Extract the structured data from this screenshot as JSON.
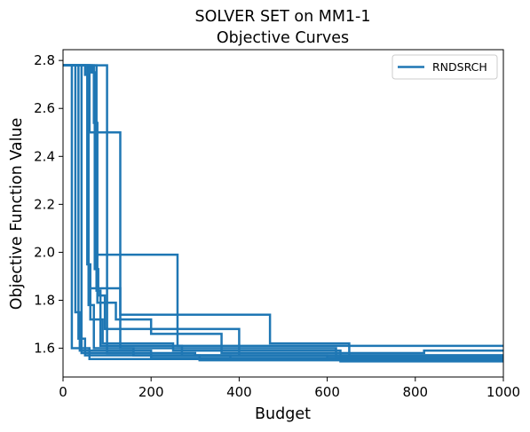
{
  "chart_data": {
    "type": "line",
    "title": "SOLVER SET on MM1-1",
    "subtitle": "Objective Curves",
    "xlabel": "Budget",
    "ylabel": "Objective Function Value",
    "xlim": [
      0,
      1000
    ],
    "ylim": [
      1.48,
      2.845
    ],
    "xticks": [
      0,
      200,
      400,
      600,
      800,
      1000
    ],
    "xtick_labels": [
      "0",
      "200",
      "400",
      "600",
      "800",
      "1000"
    ],
    "yticks": [
      1.6,
      1.8,
      2.0,
      2.2,
      2.4,
      2.6,
      2.8
    ],
    "ytick_labels": [
      "1.6",
      "1.8",
      "2.0",
      "2.2",
      "2.4",
      "2.6",
      "2.8"
    ],
    "grid": false,
    "legend_position": "top-right",
    "line_style": "step-post",
    "colors": {
      "series": "#1f77b4",
      "axes": "#000000",
      "background": "#ffffff"
    },
    "series": [
      {
        "name": "RNDSRCH",
        "x": [
          0,
          20,
          20,
          60,
          60,
          1000
        ],
        "y": [
          2.78,
          2.78,
          1.6,
          1.6,
          1.555,
          1.555
        ]
      },
      {
        "name": "",
        "x": [
          0,
          28,
          28,
          38,
          38,
          200,
          200,
          1000
        ],
        "y": [
          2.78,
          2.78,
          1.75,
          1.75,
          1.59,
          1.59,
          1.56,
          1.56
        ]
      },
      {
        "name": "",
        "x": [
          0,
          35,
          35,
          50,
          50,
          1000
        ],
        "y": [
          2.78,
          2.78,
          1.64,
          1.64,
          1.57,
          1.57
        ]
      },
      {
        "name": "",
        "x": [
          0,
          42,
          42,
          160,
          160,
          380,
          380,
          1000
        ],
        "y": [
          2.78,
          2.78,
          1.58,
          1.58,
          1.57,
          1.57,
          1.555,
          1.555
        ]
      },
      {
        "name": "",
        "x": [
          0,
          50,
          50,
          58,
          58,
          70,
          70,
          620,
          620,
          1000
        ],
        "y": [
          2.78,
          2.78,
          2.74,
          2.74,
          1.78,
          1.78,
          1.6,
          1.6,
          1.57,
          1.57
        ]
      },
      {
        "name": "",
        "x": [
          0,
          55,
          55,
          62,
          62,
          90,
          90,
          250,
          250,
          630,
          630,
          1000
        ],
        "y": [
          2.78,
          2.78,
          1.95,
          1.95,
          1.72,
          1.72,
          1.62,
          1.62,
          1.59,
          1.59,
          1.545,
          1.545
        ]
      },
      {
        "name": "",
        "x": [
          0,
          58,
          58,
          130,
          130,
          470,
          470,
          650,
          650,
          1000
        ],
        "y": [
          2.78,
          2.78,
          1.85,
          1.85,
          1.74,
          1.74,
          1.62,
          1.62,
          1.57,
          1.57
        ]
      },
      {
        "name": "",
        "x": [
          0,
          62,
          62,
          72,
          72,
          80,
          80,
          95,
          95,
          400,
          400,
          1000
        ],
        "y": [
          2.78,
          2.78,
          2.75,
          2.75,
          1.93,
          1.93,
          1.82,
          1.82,
          1.68,
          1.68,
          1.57,
          1.57
        ]
      },
      {
        "name": "",
        "x": [
          0,
          66,
          66,
          74,
          74,
          260,
          260,
          1000
        ],
        "y": [
          2.78,
          2.78,
          2.75,
          2.75,
          1.99,
          1.99,
          1.61,
          1.61
        ]
      },
      {
        "name": "",
        "x": [
          0,
          70,
          70,
          78,
          78,
          120,
          120,
          200,
          200,
          360,
          360,
          820,
          820,
          1000
        ],
        "y": [
          2.78,
          2.78,
          2.54,
          2.54,
          1.79,
          1.79,
          1.72,
          1.72,
          1.66,
          1.66,
          1.58,
          1.58,
          1.59,
          1.59
        ]
      },
      {
        "name": "",
        "x": [
          0,
          100,
          100,
          300,
          300,
          600,
          600,
          1000
        ],
        "y": [
          2.78,
          2.78,
          1.58,
          1.58,
          1.57,
          1.57,
          1.56,
          1.56
        ]
      },
      {
        "name": "",
        "x": [
          0,
          60,
          60,
          130,
          130,
          160,
          160,
          620,
          620,
          1000
        ],
        "y": [
          2.78,
          2.78,
          2.5,
          2.5,
          1.6,
          1.6,
          1.57,
          1.57,
          1.56,
          1.56
        ]
      },
      {
        "name": "",
        "x": [
          0,
          76,
          76,
          85,
          85,
          270,
          270,
          310,
          310,
          1000
        ],
        "y": [
          2.78,
          2.78,
          1.84,
          1.84,
          1.61,
          1.61,
          1.57,
          1.57,
          1.55,
          1.55
        ]
      }
    ]
  }
}
